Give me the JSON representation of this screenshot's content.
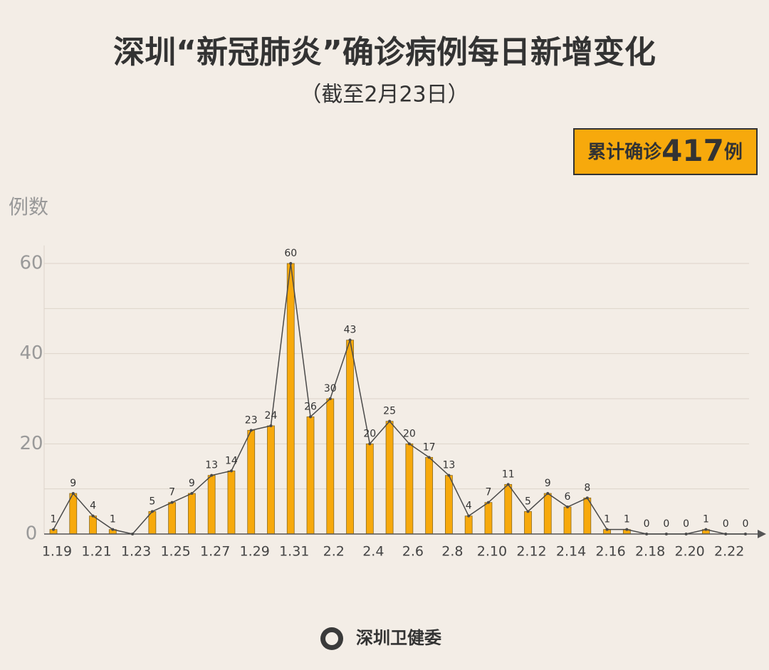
{
  "chart_data": {
    "type": "bar",
    "title": "深圳“新冠肺炎”确诊病例每日新增变化",
    "subtitle": "（截至2月23日）",
    "total_badge": {
      "prefix": "累计确诊",
      "total": 417,
      "suffix": "例"
    },
    "y_label": "例数",
    "source": "深圳卫健委",
    "categories": [
      "1.19",
      null,
      "1.21",
      null,
      "1.23",
      null,
      "1.25",
      null,
      "1.27",
      null,
      "1.29",
      null,
      "1.31",
      null,
      "2.2",
      null,
      "2.4",
      null,
      "2.6",
      null,
      "2.8",
      null,
      "2.10",
      null,
      "2.12",
      null,
      "2.14",
      null,
      "2.16",
      null,
      "2.18",
      null,
      "2.20",
      null,
      "2.22",
      null
    ],
    "values": [
      1,
      9,
      4,
      1,
      0,
      5,
      7,
      9,
      13,
      14,
      23,
      24,
      60,
      26,
      30,
      43,
      20,
      25,
      20,
      17,
      13,
      4,
      7,
      11,
      5,
      9,
      6,
      8,
      1,
      1,
      0,
      0,
      0,
      1,
      0,
      0
    ],
    "value_labels": [
      "1",
      "9",
      "4",
      "1",
      null,
      "5",
      "7",
      "9",
      "13",
      "14",
      "23",
      "24",
      "60",
      "26",
      "30",
      "43",
      "20",
      "25",
      "20",
      "17",
      "13",
      "4",
      "7",
      "11",
      "5",
      "9",
      "6",
      "8",
      "1",
      "1",
      "0",
      "0",
      "0",
      "1",
      "0",
      "0"
    ],
    "color": "#f7a90c",
    "line_color": "#4a4a4a",
    "ylim": [
      0,
      64
    ],
    "yticks": [
      0,
      20,
      40,
      60
    ],
    "minor_grid": [
      10,
      30,
      50
    ],
    "grid": true
  }
}
